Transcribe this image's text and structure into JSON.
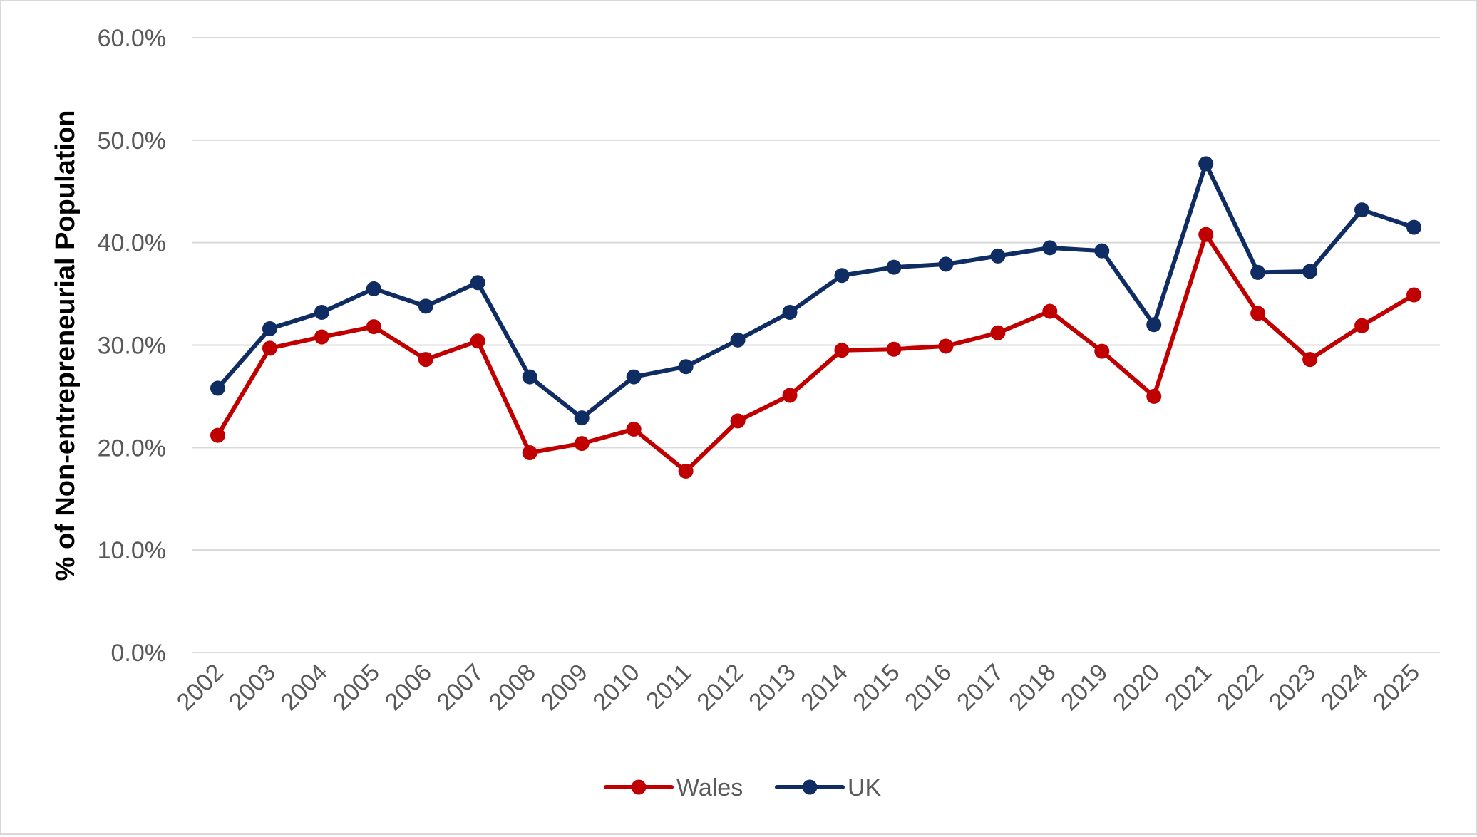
{
  "chart_data": {
    "type": "line",
    "title": "",
    "xlabel": "",
    "ylabel": "% of Non-entrepreneurial Population",
    "categories": [
      "2002",
      "2003",
      "2004",
      "2005",
      "2006",
      "2007",
      "2008",
      "2009",
      "2010",
      "2011",
      "2012",
      "2013",
      "2014",
      "2015",
      "2016",
      "2017",
      "2018",
      "2019",
      "2020",
      "2021",
      "2022",
      "2023",
      "2024",
      "2025"
    ],
    "yticks": [
      "0.0%",
      "10.0%",
      "20.0%",
      "30.0%",
      "40.0%",
      "50.0%",
      "60.0%"
    ],
    "ylim": [
      0,
      60
    ],
    "grid": true,
    "legend_position": "bottom",
    "series": [
      {
        "name": "Wales",
        "color": "#C00000",
        "values": [
          21.2,
          29.7,
          30.8,
          31.8,
          28.6,
          30.4,
          19.5,
          20.4,
          21.8,
          17.7,
          22.6,
          25.1,
          29.5,
          29.6,
          29.9,
          31.2,
          33.3,
          29.4,
          25.0,
          40.8,
          33.1,
          28.6,
          31.9,
          34.9
        ]
      },
      {
        "name": "UK",
        "color": "#0F2C63",
        "values": [
          25.8,
          31.6,
          33.2,
          35.5,
          33.8,
          36.1,
          26.9,
          22.9,
          26.9,
          27.9,
          30.5,
          33.2,
          36.8,
          37.6,
          37.9,
          38.7,
          39.5,
          39.2,
          32.0,
          47.7,
          37.1,
          37.2,
          43.2,
          41.5
        ]
      }
    ]
  }
}
